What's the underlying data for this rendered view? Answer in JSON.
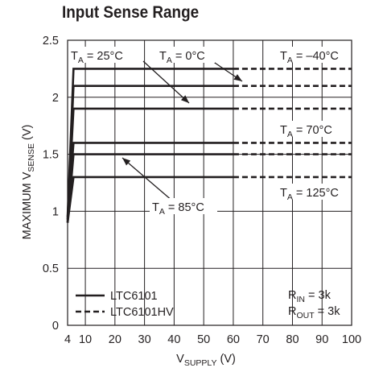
{
  "chart_data": {
    "type": "line",
    "title": "Input Sense Range",
    "xlabel": {
      "main": "V",
      "sub": "SUPPLY",
      "tail": " (V)"
    },
    "ylabel": {
      "main": "MAXIMUM V",
      "sub": "SENSE",
      "tail": " (V)"
    },
    "xlim": [
      4,
      100
    ],
    "ylim": [
      0,
      2.5
    ],
    "x_ticks": [
      4,
      10,
      20,
      30,
      40,
      50,
      60,
      70,
      80,
      90,
      100
    ],
    "x_tick_labels": [
      "4",
      "10",
      "20",
      "30",
      "40",
      "50",
      "60",
      "70",
      "80",
      "90",
      "100"
    ],
    "y_ticks": [
      0,
      0.5,
      1,
      1.5,
      2,
      2.5
    ],
    "y_tick_labels": [
      "0",
      "0.5",
      "1",
      "1.5",
      "2",
      "2.5"
    ],
    "grid": true,
    "series": [
      {
        "temperature": "-40°C",
        "level": 2.25,
        "points": [
          [
            4,
            0.95
          ],
          [
            6,
            2.25
          ],
          [
            60,
            2.25
          ],
          [
            100,
            2.25
          ]
        ]
      },
      {
        "temperature": "0°C",
        "level": 2.1,
        "points": [
          [
            4,
            0.93
          ],
          [
            6,
            2.1
          ],
          [
            60,
            2.1
          ],
          [
            100,
            2.1
          ]
        ]
      },
      {
        "temperature": "25°C",
        "level": 1.9,
        "points": [
          [
            4,
            0.92
          ],
          [
            6,
            1.9
          ],
          [
            60,
            1.9
          ],
          [
            100,
            1.9
          ]
        ]
      },
      {
        "temperature": "70°C",
        "level": 1.6,
        "points": [
          [
            4,
            0.9
          ],
          [
            6,
            1.6
          ],
          [
            60,
            1.6
          ],
          [
            100,
            1.6
          ]
        ]
      },
      {
        "temperature": "85°C",
        "level": 1.5,
        "points": [
          [
            4,
            0.9
          ],
          [
            6,
            1.5
          ],
          [
            60,
            1.5
          ],
          [
            100,
            1.5
          ]
        ]
      },
      {
        "temperature": "125°C",
        "level": 1.3,
        "points": [
          [
            4,
            0.9
          ],
          [
            6,
            1.3
          ],
          [
            60,
            1.3
          ],
          [
            100,
            1.3
          ]
        ]
      }
    ],
    "solid_range": [
      4,
      60
    ],
    "dashed_range": [
      60,
      100
    ],
    "legend": {
      "position": "bottom-left",
      "entries": [
        {
          "label": "LTC6101",
          "style": "solid"
        },
        {
          "label": "LTC6101HV",
          "style": "dashed"
        }
      ]
    },
    "annotations": {
      "ta_25": {
        "prefix": "T",
        "sub": "A",
        "suffix": " = 25°C"
      },
      "ta_0": {
        "prefix": "T",
        "sub": "A",
        "suffix": " = 0°C"
      },
      "ta_m40": {
        "prefix": "T",
        "sub": "A",
        "suffix": " = –40°C"
      },
      "ta_70": {
        "prefix": "T",
        "sub": "A",
        "suffix": " = 70°C"
      },
      "ta_125": {
        "prefix": "T",
        "sub": "A",
        "suffix": " = 125°C"
      },
      "ta_85": {
        "prefix": "T",
        "sub": "A",
        "suffix": " = 85°C"
      },
      "rin": {
        "prefix": "R",
        "sub": "IN",
        "suffix": " = 3k"
      },
      "rout": {
        "prefix": "R",
        "sub": "OUT",
        "suffix": " = 3k"
      }
    },
    "line_color": "#231f20",
    "grid_color": "#231f20"
  }
}
